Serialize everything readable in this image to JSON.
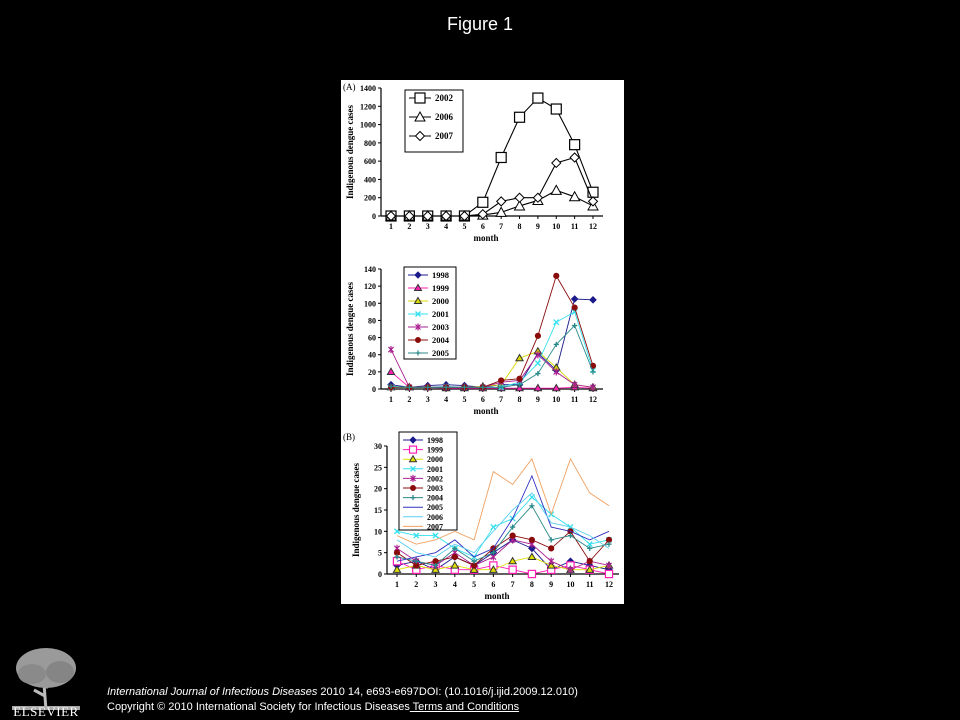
{
  "slide": {
    "title": "Figure 1"
  },
  "footer": {
    "journal": "International Journal of Infectious Diseases",
    "citation_rest": " 2010 14, e693-e697DOI: (10.1016/j.ijid.2009.12.010)",
    "copyright": "Copyright © 2010 International Society for Infectious Diseases",
    "terms_link": " Terms and Conditions",
    "logo_word": "ELSEVIER"
  },
  "chart_data": [
    {
      "type": "line",
      "panel_label": "(A)",
      "xlabel": "month",
      "ylabel": "Indigenous dengue cases",
      "ylim": [
        0,
        1400
      ],
      "yticks": [
        0,
        200,
        400,
        600,
        800,
        1000,
        1200,
        1400
      ],
      "categories": [
        "1",
        "2",
        "3",
        "4",
        "5",
        "6",
        "7",
        "8",
        "9",
        "10",
        "11",
        "12"
      ],
      "series": [
        {
          "name": "2002",
          "marker": "square",
          "values": [
            0,
            0,
            0,
            0,
            0,
            150,
            640,
            1080,
            1290,
            1170,
            780,
            260
          ]
        },
        {
          "name": "2006",
          "marker": "triangle",
          "values": [
            0,
            0,
            0,
            0,
            0,
            10,
            40,
            110,
            170,
            280,
            210,
            110
          ]
        },
        {
          "name": "2007",
          "marker": "diamond",
          "values": [
            0,
            0,
            0,
            0,
            0,
            20,
            160,
            200,
            200,
            580,
            640,
            160
          ]
        }
      ],
      "legend": "top-left"
    },
    {
      "type": "line",
      "panel_label": "",
      "xlabel": "month",
      "ylabel": "Indigenous dengue cases",
      "ylim": [
        0,
        140
      ],
      "yticks": [
        0,
        20,
        40,
        60,
        80,
        100,
        120,
        140
      ],
      "categories": [
        "1",
        "2",
        "3",
        "4",
        "5",
        "6",
        "7",
        "8",
        "9",
        "10",
        "11",
        "12"
      ],
      "series": [
        {
          "name": "1998",
          "color": "#1a1a8c",
          "marker": "diamond",
          "values": [
            5,
            2,
            4,
            5,
            4,
            2,
            5,
            5,
            42,
            22,
            105,
            104
          ]
        },
        {
          "name": "1999",
          "color": "#ff1fb4",
          "marker": "triangle",
          "values": [
            20,
            2,
            2,
            1,
            1,
            1,
            1,
            1,
            1,
            1,
            2,
            1
          ]
        },
        {
          "name": "2000",
          "color": "#d8d800",
          "marker": "triangle",
          "values": [
            2,
            2,
            2,
            2,
            2,
            3,
            5,
            36,
            44,
            25,
            5,
            2
          ]
        },
        {
          "name": "2001",
          "color": "#33e0ee",
          "marker": "x",
          "values": [
            2,
            2,
            2,
            3,
            2,
            2,
            2,
            8,
            30,
            78,
            90,
            22
          ]
        },
        {
          "name": "2003",
          "color": "#aa2090",
          "marker": "star",
          "values": [
            46,
            2,
            2,
            2,
            2,
            2,
            8,
            10,
            40,
            20,
            5,
            2
          ]
        },
        {
          "name": "2004",
          "color": "#8a0b0b",
          "marker": "circle",
          "values": [
            2,
            2,
            2,
            2,
            2,
            2,
            10,
            12,
            62,
            132,
            95,
            27
          ]
        },
        {
          "name": "2005",
          "color": "#2a8a8a",
          "marker": "plus",
          "values": [
            3,
            2,
            2,
            2,
            2,
            2,
            2,
            5,
            18,
            52,
            74,
            20
          ]
        }
      ],
      "legend": "top-left"
    },
    {
      "type": "line",
      "panel_label": "(B)",
      "xlabel": "month",
      "ylabel": "Indigenous dengue cases",
      "ylim": [
        0,
        30
      ],
      "yticks": [
        0,
        5,
        10,
        15,
        20,
        25,
        30
      ],
      "categories": [
        "1",
        "2",
        "3",
        "4",
        "5",
        "6",
        "7",
        "8",
        "9",
        "10",
        "11",
        "12"
      ],
      "series": [
        {
          "name": "1998",
          "color": "#1a1a8c",
          "marker": "diamond",
          "values": [
            2,
            3,
            1,
            4,
            2,
            5,
            8,
            6,
            1,
            3,
            2,
            1
          ]
        },
        {
          "name": "1999",
          "color": "#ff1fb4",
          "marker": "square",
          "values": [
            3,
            1,
            2,
            1,
            1,
            2,
            1,
            0,
            1,
            2,
            1,
            0
          ]
        },
        {
          "name": "2000",
          "color": "#e0e000",
          "marker": "triangle",
          "values": [
            1,
            2,
            1,
            2,
            1,
            1,
            3,
            4,
            2,
            1,
            1,
            2
          ]
        },
        {
          "name": "2001",
          "color": "#33e0ee",
          "marker": "x",
          "values": [
            10,
            9,
            9,
            6,
            4,
            11,
            13,
            18,
            14,
            11,
            7,
            8
          ]
        },
        {
          "name": "2002",
          "color": "#aa2090",
          "marker": "star",
          "values": [
            6,
            3,
            2,
            5,
            2,
            4,
            8,
            7,
            3,
            1,
            3,
            2
          ]
        },
        {
          "name": "2003",
          "color": "#8a0b0b",
          "marker": "circle",
          "values": [
            5,
            2,
            3,
            4,
            2,
            6,
            9,
            8,
            6,
            10,
            3,
            8
          ]
        },
        {
          "name": "2004",
          "color": "#2a8a8a",
          "marker": "plus",
          "values": [
            4,
            3,
            2,
            6,
            3,
            5,
            11,
            16,
            8,
            9,
            6,
            7
          ]
        },
        {
          "name": "2005",
          "color": "#3030c0",
          "marker": "none",
          "values": [
            3,
            4,
            5,
            8,
            4,
            6,
            13,
            23,
            11,
            10,
            8,
            10
          ]
        },
        {
          "name": "2006",
          "color": "#5ad0f0",
          "marker": "none",
          "values": [
            8,
            5,
            4,
            7,
            5,
            10,
            15,
            19,
            12,
            11,
            9,
            6
          ]
        },
        {
          "name": "2007",
          "color": "#f0a060",
          "marker": "none",
          "values": [
            9,
            7,
            8,
            10,
            8,
            24,
            21,
            27,
            14,
            27,
            19,
            16
          ]
        }
      ],
      "legend": "top-left"
    }
  ]
}
